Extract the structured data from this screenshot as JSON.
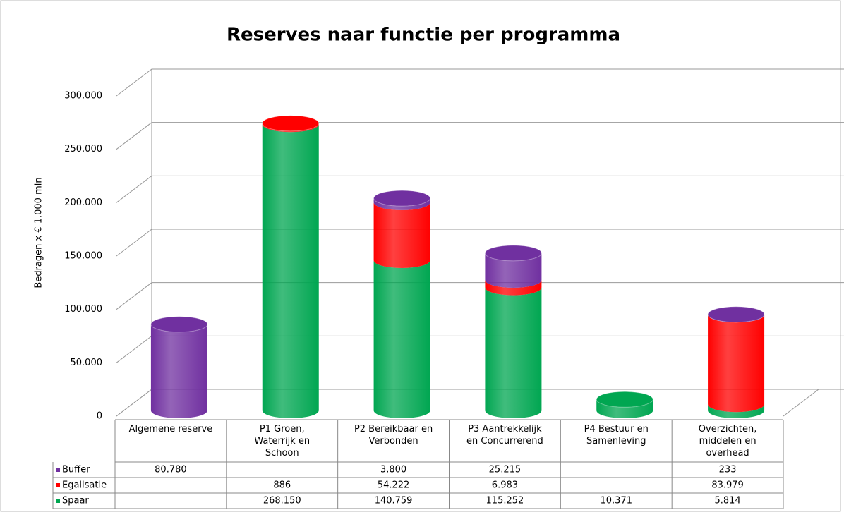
{
  "chart_data": {
    "type": "bar",
    "title": "Reserves naar functie per programma",
    "y_label": "Bedragen x € 1.000 mln",
    "categories": [
      "Algemene reserve",
      "P1 Groen, Waterrijk en Schoon",
      "P2 Bereikbaar en Verbonden",
      "P3 Aantrekkelijk en Concurrerend",
      "P4 Bestuur en Samenleving",
      "Overzichten, middelen en overhead"
    ],
    "series": [
      {
        "name": "Spaar",
        "color": "#00a651",
        "values": [
          null,
          268150,
          140759,
          115252,
          10371,
          5814
        ],
        "value_labels": [
          null,
          "268.150",
          "140.759",
          "115.252",
          "10.371",
          "5.814"
        ]
      },
      {
        "name": "Egalisatie",
        "color": "#ff0000",
        "values": [
          null,
          886,
          54222,
          6983,
          null,
          83979
        ],
        "value_labels": [
          null,
          "886",
          "54.222",
          "6.983",
          null,
          "83.979"
        ]
      },
      {
        "name": "Buffer",
        "color": "#7030a0",
        "values": [
          80780,
          null,
          3800,
          25215,
          null,
          233
        ],
        "value_labels": [
          "80.780",
          null,
          "3.800",
          "25.215",
          null,
          "233"
        ]
      }
    ],
    "ylim": [
      0,
      300000
    ],
    "yticks": [
      0,
      {
        "value": 50000,
        "label": "50.000"
      },
      {
        "value": 100000,
        "label": "100.000"
      },
      {
        "value": 150000,
        "label": "150.000"
      },
      {
        "value": 200000,
        "label": "200.000"
      },
      {
        "value": 250000,
        "label": "250.000"
      },
      {
        "value": 300000,
        "label": "300.000"
      }
    ],
    "grid": true,
    "stacked": true
  }
}
